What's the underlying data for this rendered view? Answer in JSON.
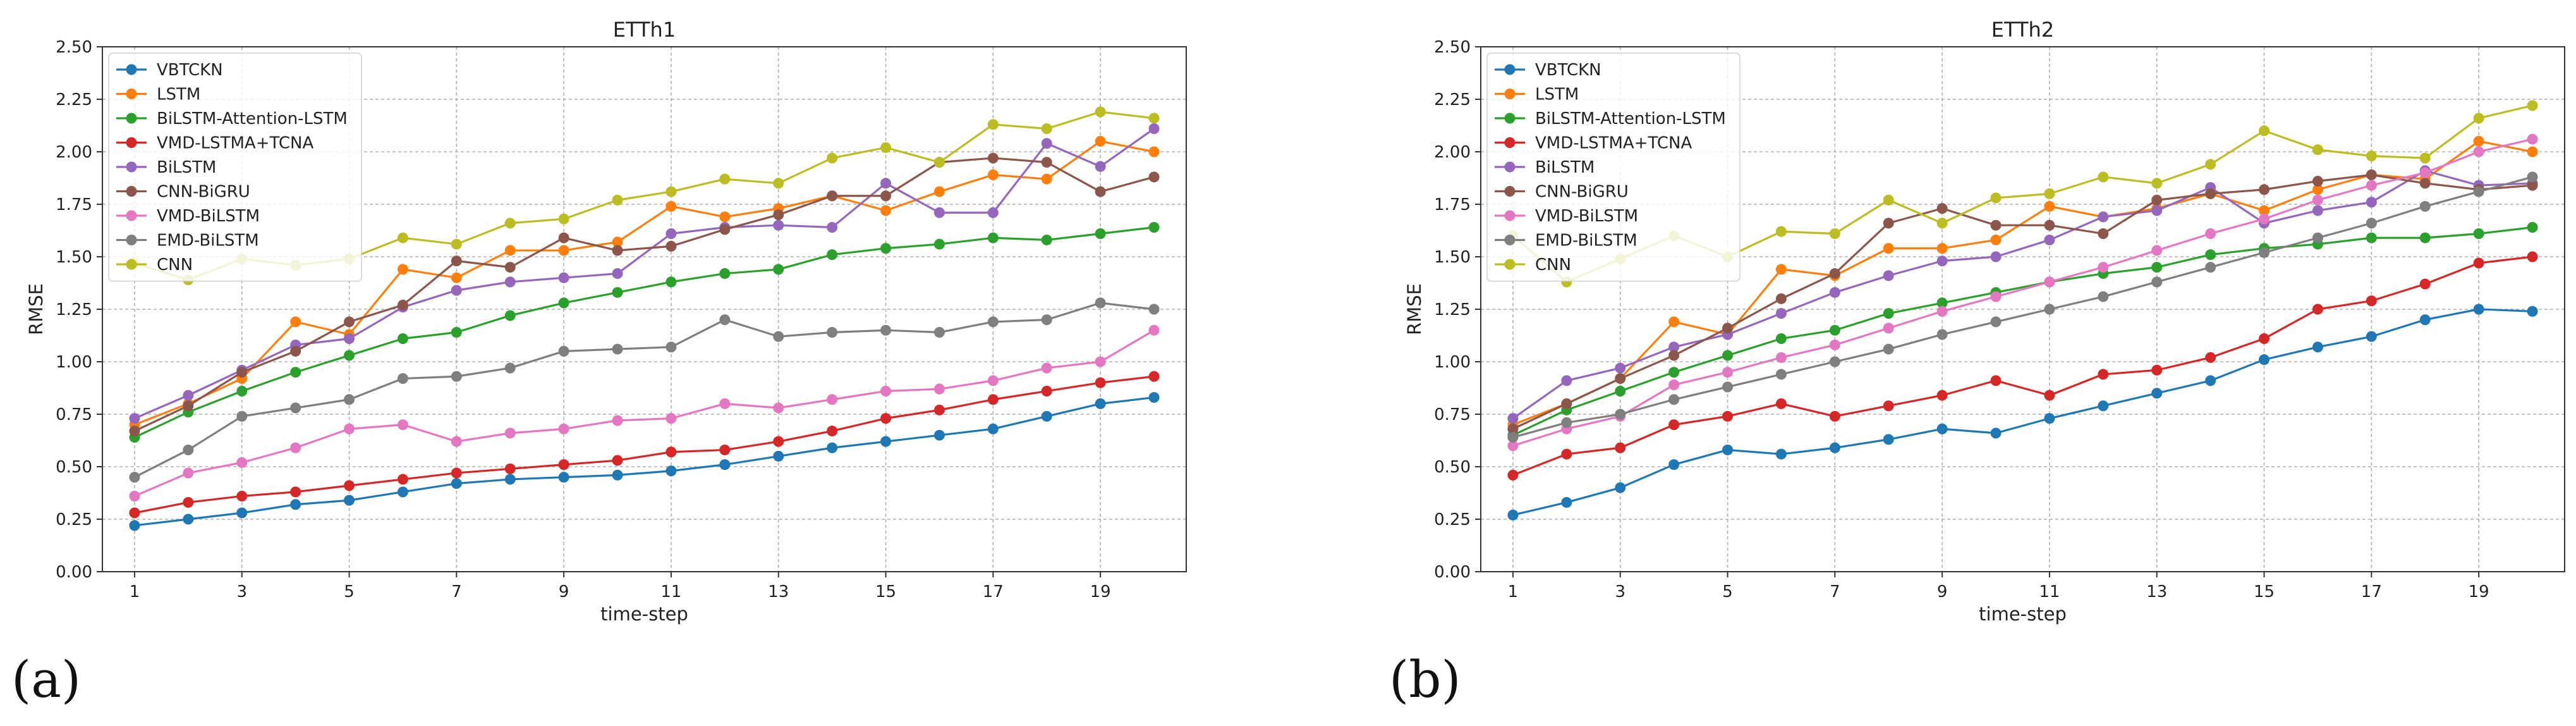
{
  "figure": {
    "panel_labels": [
      "(a)",
      "(b)"
    ]
  },
  "chart_data": [
    {
      "type": "line",
      "title": "ETTh1",
      "xlabel": "time-step",
      "ylabel": "RMSE",
      "x": [
        1,
        2,
        3,
        4,
        5,
        6,
        7,
        8,
        9,
        10,
        11,
        12,
        13,
        14,
        15,
        16,
        17,
        18,
        19,
        20
      ],
      "xticks": [
        "1",
        "3",
        "5",
        "7",
        "9",
        "11",
        "13",
        "15",
        "17",
        "19"
      ],
      "xtick_values": [
        1,
        3,
        5,
        7,
        9,
        11,
        13,
        15,
        17,
        19
      ],
      "xlim": [
        0.4,
        20.6
      ],
      "ylim": [
        0,
        2.5
      ],
      "yticks": [
        "0.00",
        "0.25",
        "0.50",
        "0.75",
        "1.00",
        "1.25",
        "1.50",
        "1.75",
        "2.00",
        "2.25",
        "2.50"
      ],
      "ytick_values": [
        0,
        0.25,
        0.5,
        0.75,
        1.0,
        1.25,
        1.5,
        1.75,
        2.0,
        2.25,
        2.5
      ],
      "grid": true,
      "legend_position": "top-left",
      "series": [
        {
          "name": "VBTCKN",
          "color": "#1f77b4",
          "values": [
            0.22,
            0.25,
            0.28,
            0.32,
            0.34,
            0.38,
            0.42,
            0.44,
            0.45,
            0.46,
            0.48,
            0.51,
            0.55,
            0.59,
            0.62,
            0.65,
            0.68,
            0.74,
            0.8,
            0.83
          ]
        },
        {
          "name": "LSTM",
          "color": "#ff7f0e",
          "values": [
            0.7,
            0.8,
            0.92,
            1.19,
            1.13,
            1.44,
            1.4,
            1.53,
            1.53,
            1.57,
            1.74,
            1.69,
            1.73,
            1.79,
            1.72,
            1.81,
            1.89,
            1.87,
            2.05,
            2.0
          ]
        },
        {
          "name": "BiLSTM-Attention-LSTM",
          "color": "#2ca02c",
          "values": [
            0.64,
            0.76,
            0.86,
            0.95,
            1.03,
            1.11,
            1.14,
            1.22,
            1.28,
            1.33,
            1.38,
            1.42,
            1.44,
            1.51,
            1.54,
            1.56,
            1.59,
            1.58,
            1.61,
            1.64
          ]
        },
        {
          "name": "VMD-LSTMA+TCNA",
          "color": "#d62728",
          "values": [
            0.28,
            0.33,
            0.36,
            0.38,
            0.41,
            0.44,
            0.47,
            0.49,
            0.51,
            0.53,
            0.57,
            0.58,
            0.62,
            0.67,
            0.73,
            0.77,
            0.82,
            0.86,
            0.9,
            0.93
          ]
        },
        {
          "name": "BiLSTM",
          "color": "#9467bd",
          "values": [
            0.73,
            0.84,
            0.96,
            1.08,
            1.11,
            1.26,
            1.34,
            1.38,
            1.4,
            1.42,
            1.61,
            1.64,
            1.65,
            1.64,
            1.85,
            1.71,
            1.71,
            2.04,
            1.93,
            2.11
          ]
        },
        {
          "name": "CNN-BiGRU",
          "color": "#8c564b",
          "values": [
            0.67,
            0.79,
            0.95,
            1.05,
            1.19,
            1.27,
            1.48,
            1.45,
            1.59,
            1.53,
            1.55,
            1.63,
            1.7,
            1.79,
            1.79,
            1.95,
            1.97,
            1.95,
            1.81,
            1.88
          ]
        },
        {
          "name": "VMD-BiLSTM",
          "color": "#e377c2",
          "values": [
            0.36,
            0.47,
            0.52,
            0.59,
            0.68,
            0.7,
            0.62,
            0.66,
            0.68,
            0.72,
            0.73,
            0.8,
            0.78,
            0.82,
            0.86,
            0.87,
            0.91,
            0.97,
            1.0,
            1.15
          ]
        },
        {
          "name": "EMD-BiLSTM",
          "color": "#7f7f7f",
          "values": [
            0.45,
            0.58,
            0.74,
            0.78,
            0.82,
            0.92,
            0.93,
            0.97,
            1.05,
            1.06,
            1.07,
            1.2,
            1.12,
            1.14,
            1.15,
            1.14,
            1.19,
            1.2,
            1.28,
            1.25
          ]
        },
        {
          "name": "CNN",
          "color": "#bcbd22",
          "values": [
            1.47,
            1.39,
            1.49,
            1.46,
            1.49,
            1.59,
            1.56,
            1.66,
            1.68,
            1.77,
            1.81,
            1.87,
            1.85,
            1.97,
            2.02,
            1.95,
            2.13,
            2.11,
            2.19,
            2.16
          ]
        }
      ]
    },
    {
      "type": "line",
      "title": "ETTh2",
      "xlabel": "time-step",
      "ylabel": "RMSE",
      "x": [
        1,
        2,
        3,
        4,
        5,
        6,
        7,
        8,
        9,
        10,
        11,
        12,
        13,
        14,
        15,
        16,
        17,
        18,
        19,
        20
      ],
      "xticks": [
        "1",
        "3",
        "5",
        "7",
        "9",
        "11",
        "13",
        "15",
        "17",
        "19"
      ],
      "xtick_values": [
        1,
        3,
        5,
        7,
        9,
        11,
        13,
        15,
        17,
        19
      ],
      "xlim": [
        0.4,
        20.6
      ],
      "ylim": [
        0,
        2.5
      ],
      "yticks": [
        "0.00",
        "0.25",
        "0.50",
        "0.75",
        "1.00",
        "1.25",
        "1.50",
        "1.75",
        "2.00",
        "2.25",
        "2.50"
      ],
      "ytick_values": [
        0,
        0.25,
        0.5,
        0.75,
        1.0,
        1.25,
        1.5,
        1.75,
        2.0,
        2.25,
        2.5
      ],
      "grid": true,
      "legend_position": "top-left",
      "series": [
        {
          "name": "VBTCKN",
          "color": "#1f77b4",
          "values": [
            0.27,
            0.33,
            0.4,
            0.51,
            0.58,
            0.56,
            0.59,
            0.63,
            0.68,
            0.66,
            0.73,
            0.79,
            0.85,
            0.91,
            1.01,
            1.07,
            1.12,
            1.2,
            1.25,
            1.24
          ]
        },
        {
          "name": "LSTM",
          "color": "#ff7f0e",
          "values": [
            0.7,
            0.8,
            0.92,
            1.19,
            1.13,
            1.44,
            1.41,
            1.54,
            1.54,
            1.58,
            1.74,
            1.69,
            1.73,
            1.8,
            1.72,
            1.82,
            1.89,
            1.87,
            2.05,
            2.0
          ]
        },
        {
          "name": "BiLSTM-Attention-LSTM",
          "color": "#2ca02c",
          "values": [
            0.65,
            0.77,
            0.86,
            0.95,
            1.03,
            1.11,
            1.15,
            1.23,
            1.28,
            1.33,
            1.38,
            1.42,
            1.45,
            1.51,
            1.54,
            1.56,
            1.59,
            1.59,
            1.61,
            1.64
          ]
        },
        {
          "name": "VMD-LSTMA+TCNA",
          "color": "#d62728",
          "values": [
            0.46,
            0.56,
            0.59,
            0.7,
            0.74,
            0.8,
            0.74,
            0.79,
            0.84,
            0.91,
            0.84,
            0.94,
            0.96,
            1.02,
            1.11,
            1.25,
            1.29,
            1.37,
            1.47,
            1.5
          ]
        },
        {
          "name": "BiLSTM",
          "color": "#9467bd",
          "values": [
            0.73,
            0.91,
            0.97,
            1.07,
            1.13,
            1.23,
            1.33,
            1.41,
            1.48,
            1.5,
            1.58,
            1.69,
            1.72,
            1.83,
            1.66,
            1.72,
            1.76,
            1.91,
            1.84,
            1.85
          ]
        },
        {
          "name": "CNN-BiGRU",
          "color": "#8c564b",
          "values": [
            0.68,
            0.8,
            0.92,
            1.03,
            1.16,
            1.3,
            1.42,
            1.66,
            1.73,
            1.65,
            1.65,
            1.61,
            1.77,
            1.8,
            1.82,
            1.86,
            1.89,
            1.85,
            1.82,
            1.84
          ]
        },
        {
          "name": "VMD-BiLSTM",
          "color": "#e377c2",
          "values": [
            0.6,
            0.68,
            0.74,
            0.89,
            0.95,
            1.02,
            1.08,
            1.16,
            1.24,
            1.31,
            1.38,
            1.45,
            1.53,
            1.61,
            1.68,
            1.77,
            1.84,
            1.9,
            2.0,
            2.06
          ]
        },
        {
          "name": "EMD-BiLSTM",
          "color": "#7f7f7f",
          "values": [
            0.64,
            0.71,
            0.75,
            0.82,
            0.88,
            0.94,
            1.0,
            1.06,
            1.13,
            1.19,
            1.25,
            1.31,
            1.38,
            1.45,
            1.52,
            1.59,
            1.66,
            1.74,
            1.81,
            1.88
          ]
        },
        {
          "name": "CNN",
          "color": "#bcbd22",
          "values": [
            1.6,
            1.38,
            1.49,
            1.6,
            1.5,
            1.62,
            1.61,
            1.77,
            1.66,
            1.78,
            1.8,
            1.88,
            1.85,
            1.94,
            2.1,
            2.01,
            1.98,
            1.97,
            2.16,
            2.22
          ]
        }
      ]
    }
  ]
}
